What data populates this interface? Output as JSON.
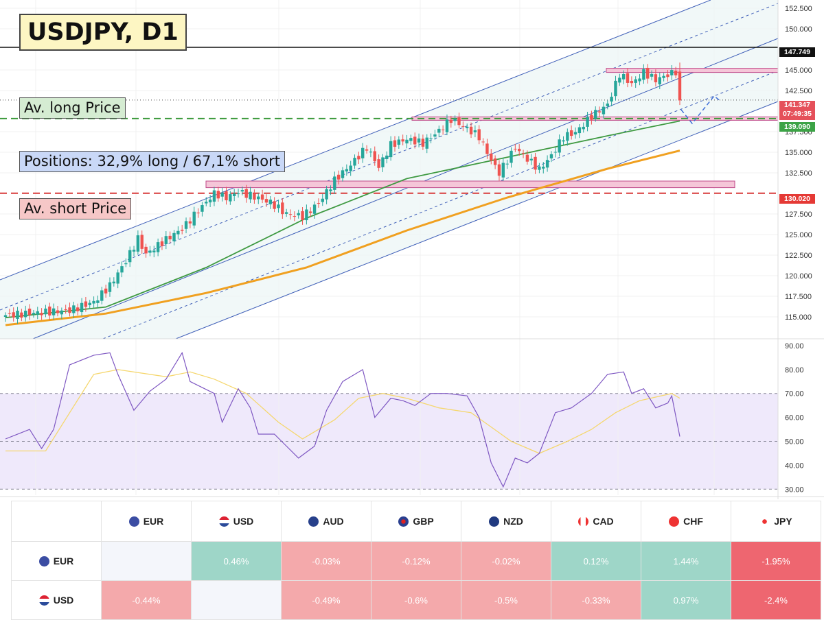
{
  "title": "USDJPY, D1",
  "annotations": {
    "long_price": "Av. long Price",
    "positions": "Positions: 32,9% long / 67,1% short",
    "short_price": "Av. short Price"
  },
  "price_tags": {
    "black": "147.749",
    "current_price": "141.347",
    "countdown": "07:49:35",
    "green": "139.090",
    "red": "130.020"
  },
  "colors": {
    "bull": "#26a69a",
    "bear": "#ef5350",
    "ma_fast": "#3f9a42",
    "ma_slow": "#f0a020",
    "channel": "#3f5fb8",
    "rsi_line": "#7e57c2",
    "rsi_ma": "#f5d76e",
    "rsi_band": "#efe9fb",
    "positive_cell": "#9ed6c8",
    "negative_cell": "#f4a9ab",
    "strong_negative_cell": "#ee6670"
  },
  "chart_data": [
    {
      "type": "candlestick",
      "title": "USDJPY, D1",
      "ylim": [
        112.5,
        153.5
      ],
      "y_ticks": [
        "152.500",
        "150.000",
        "145.000",
        "142.500",
        "137.500",
        "135.000",
        "132.500",
        "127.500",
        "125.000",
        "122.500",
        "120.000",
        "117.500",
        "115.000"
      ],
      "close_path": [
        [
          0,
          115.2
        ],
        [
          8,
          115.5
        ],
        [
          16,
          115.8
        ],
        [
          22,
          116.8
        ],
        [
          26,
          118.8
        ],
        [
          30,
          121.8
        ],
        [
          33,
          124.5
        ],
        [
          35,
          122.6
        ],
        [
          40,
          124.4
        ],
        [
          44,
          125.7
        ],
        [
          48,
          127.9
        ],
        [
          52,
          130.0
        ],
        [
          55,
          129.5
        ],
        [
          58,
          130.2
        ],
        [
          62,
          129.6
        ],
        [
          66,
          128.9
        ],
        [
          70,
          127.5
        ],
        [
          74,
          127.2
        ],
        [
          78,
          128.8
        ],
        [
          82,
          131.6
        ],
        [
          86,
          133.5
        ],
        [
          90,
          135.6
        ],
        [
          93,
          133.2
        ],
        [
          96,
          135.9
        ],
        [
          100,
          136.6
        ],
        [
          104,
          136.1
        ],
        [
          108,
          137.6
        ],
        [
          111,
          139.0
        ],
        [
          114,
          138.2
        ],
        [
          118,
          136.9
        ],
        [
          121,
          134.0
        ],
        [
          123,
          132.5
        ],
        [
          127,
          135.6
        ],
        [
          130,
          134.2
        ],
        [
          133,
          132.9
        ],
        [
          136,
          134.6
        ],
        [
          139,
          136.9
        ],
        [
          142,
          137.4
        ],
        [
          146,
          139.4
        ],
        [
          150,
          140.8
        ],
        [
          153,
          144.5
        ],
        [
          156,
          143.3
        ],
        [
          159,
          144.7
        ],
        [
          162,
          143.8
        ],
        [
          165,
          144.4
        ],
        [
          167,
          144.8
        ],
        [
          168,
          141.3
        ]
      ],
      "moving_averages": [
        {
          "name": "",
          "color": "#3f9a42",
          "points": [
            [
              0,
              114.9
            ],
            [
              25,
              116.2
            ],
            [
              50,
              121.0
            ],
            [
              75,
              127.0
            ],
            [
              100,
              131.8
            ],
            [
              125,
              134.4
            ],
            [
              150,
              137.0
            ],
            [
              168,
              138.8
            ]
          ]
        },
        {
          "name": "",
          "color": "#f0a020",
          "points": [
            [
              0,
              114.0
            ],
            [
              25,
              115.4
            ],
            [
              50,
              117.9
            ],
            [
              75,
              121.0
            ],
            [
              100,
              125.5
            ],
            [
              125,
              129.5
            ],
            [
              150,
              133.0
            ],
            [
              168,
              135.2
            ]
          ]
        }
      ],
      "horizontal_levels": [
        147.749,
        141.347,
        139.09,
        130.02
      ],
      "zones": [
        {
          "from": 144.7,
          "to": 145.2
        },
        {
          "from": 138.9,
          "to": 139.3
        },
        {
          "from": 130.7,
          "to": 131.5
        }
      ]
    },
    {
      "type": "line",
      "title": "",
      "ylim": [
        27.5,
        92
      ],
      "y_ticks": [
        "90.00",
        "80.00",
        "70.00",
        "60.00",
        "50.00",
        "40.00",
        "30.00"
      ],
      "levels": [
        70,
        50,
        30
      ],
      "rsi": [
        [
          0,
          51
        ],
        [
          6,
          55
        ],
        [
          9,
          47
        ],
        [
          12,
          55
        ],
        [
          16,
          82
        ],
        [
          22,
          86
        ],
        [
          26,
          87
        ],
        [
          28,
          78
        ],
        [
          32,
          63
        ],
        [
          36,
          71
        ],
        [
          40,
          76
        ],
        [
          44,
          87
        ],
        [
          46,
          75
        ],
        [
          52,
          70
        ],
        [
          54,
          58
        ],
        [
          58,
          72
        ],
        [
          61,
          64
        ],
        [
          63,
          53
        ],
        [
          67,
          53
        ],
        [
          70,
          48
        ],
        [
          73,
          43
        ],
        [
          77,
          48
        ],
        [
          80,
          63
        ],
        [
          84,
          75
        ],
        [
          89,
          80
        ],
        [
          92,
          60
        ],
        [
          96,
          68
        ],
        [
          99,
          67
        ],
        [
          102,
          65
        ],
        [
          106,
          70
        ],
        [
          110,
          70
        ],
        [
          115,
          69
        ],
        [
          118,
          60
        ],
        [
          121,
          41
        ],
        [
          124,
          31
        ],
        [
          127,
          43
        ],
        [
          130,
          41
        ],
        [
          133,
          45
        ],
        [
          137,
          62
        ],
        [
          141,
          64
        ],
        [
          146,
          70
        ],
        [
          150,
          78
        ],
        [
          154,
          79
        ],
        [
          156,
          70
        ],
        [
          159,
          72
        ],
        [
          162,
          64
        ],
        [
          165,
          66
        ],
        [
          166,
          69
        ],
        [
          168,
          52
        ]
      ],
      "rsi_ma": [
        [
          0,
          46
        ],
        [
          10,
          46
        ],
        [
          16,
          62
        ],
        [
          22,
          78
        ],
        [
          28,
          80
        ],
        [
          40,
          77
        ],
        [
          46,
          79
        ],
        [
          52,
          76
        ],
        [
          60,
          70
        ],
        [
          68,
          58
        ],
        [
          74,
          51
        ],
        [
          82,
          59
        ],
        [
          88,
          68
        ],
        [
          94,
          70
        ],
        [
          100,
          68
        ],
        [
          108,
          64
        ],
        [
          116,
          62
        ],
        [
          121,
          56
        ],
        [
          126,
          50
        ],
        [
          133,
          45
        ],
        [
          140,
          50
        ],
        [
          146,
          55
        ],
        [
          152,
          62
        ],
        [
          158,
          67
        ],
        [
          166,
          70
        ],
        [
          168,
          68
        ]
      ]
    },
    {
      "type": "table",
      "columns": [
        "EUR",
        "USD",
        "AUD",
        "GBP",
        "NZD",
        "CAD",
        "CHF",
        "JPY"
      ],
      "rows": [
        {
          "label": "EUR",
          "values": [
            "",
            "0.46%",
            "-0.03%",
            "-0.12%",
            "-0.02%",
            "0.12%",
            "1.44%",
            "-1.95%"
          ]
        },
        {
          "label": "USD",
          "values": [
            "-0.44%",
            "",
            "-0.49%",
            "-0.6%",
            "-0.5%",
            "-0.33%",
            "0.97%",
            "-2.4%"
          ]
        }
      ]
    }
  ]
}
